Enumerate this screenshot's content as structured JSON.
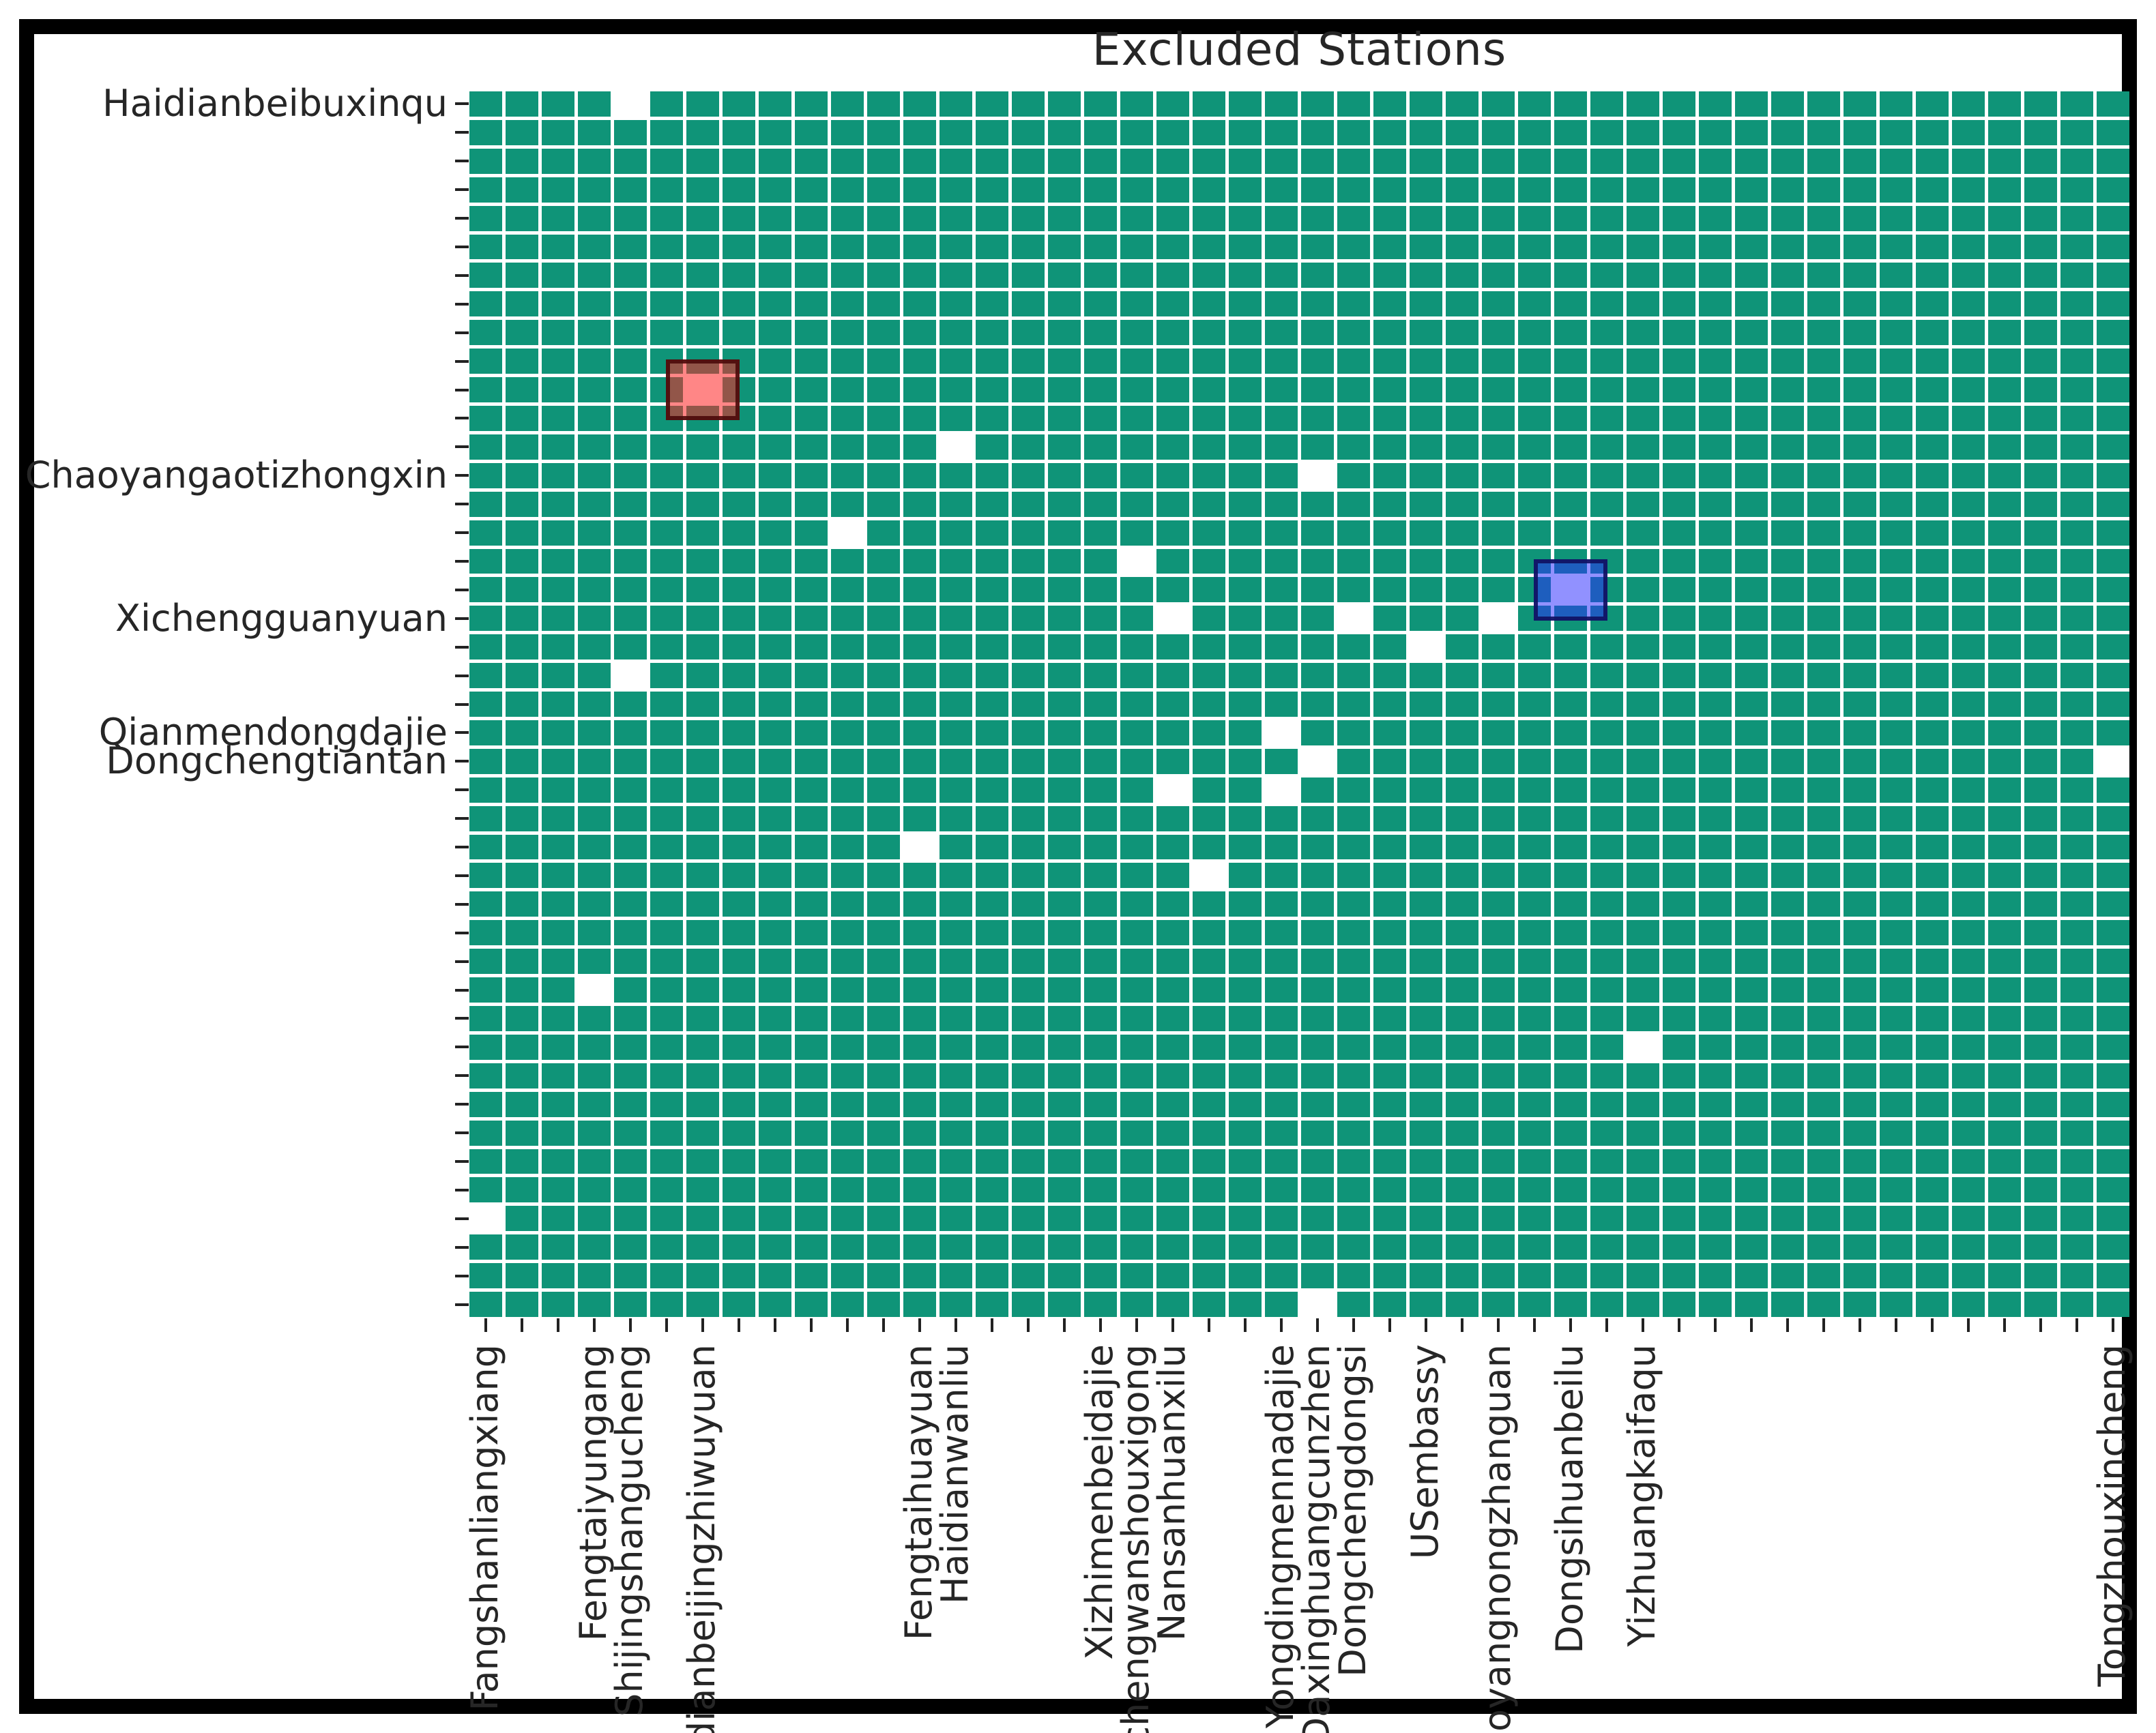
{
  "title": "Excluded Stations",
  "colors": {
    "included_cell": "#0F9478",
    "excluded_cell": "#FFFFFF",
    "grid_line": "#FFFFFF",
    "red_highlight_fill": "rgba(255,35,35,0.55)",
    "red_highlight_border": "rgba(75,10,10,0.9)",
    "blue_highlight_fill": "rgba(45,45,255,0.52)",
    "blue_highlight_border": "rgba(15,15,95,0.9)",
    "tick_mark": "#222222",
    "text": "#262626",
    "frame": "#000000"
  },
  "chart_data": {
    "type": "heatmap",
    "title": "Excluded Stations",
    "grid_rows": 43,
    "grid_cols": 46,
    "legend": "none",
    "grid_lines": "white gaps between cells",
    "value_meaning": {
      "included": "teal cell",
      "excluded": "white cell"
    },
    "y_tick_labels": [
      {
        "row": 0,
        "label": "Haidianbeibuxinqu"
      },
      {
        "row": 13,
        "label": "Chaoyangaotizhongxin"
      },
      {
        "row": 18,
        "label": "Xichengguanyuan"
      },
      {
        "row": 22,
        "label": "Qianmendongdajie"
      },
      {
        "row": 23,
        "label": "Dongchengtiantan"
      }
    ],
    "x_tick_labels": [
      {
        "col": 0,
        "label": "Fangshanliangxiang"
      },
      {
        "col": 3,
        "label": "Fengtaiyungang"
      },
      {
        "col": 4,
        "label": "Shijingshangucheng"
      },
      {
        "col": 6,
        "label": "Haidianbeijingzhiwuyuan"
      },
      {
        "col": 12,
        "label": "Fengtaihuayuan"
      },
      {
        "col": 13,
        "label": "Haidianwanliu"
      },
      {
        "col": 17,
        "label": "Xizhimenbeidajie"
      },
      {
        "col": 18,
        "label": "Xichengwanshouxigong"
      },
      {
        "col": 19,
        "label": "Nansanhuanxilu"
      },
      {
        "col": 22,
        "label": "Yongdingmennadajie"
      },
      {
        "col": 23,
        "label": "Daxinghuangcunzhen"
      },
      {
        "col": 24,
        "label": "Dongchengdongsi"
      },
      {
        "col": 26,
        "label": "USembassy"
      },
      {
        "col": 28,
        "label": "Chaoyangnongzhanguan"
      },
      {
        "col": 30,
        "label": "Dongsihuanbeilu"
      },
      {
        "col": 32,
        "label": "Yizhuangkaifaqu"
      },
      {
        "col": 45,
        "label": "Tongzhouxincheng"
      }
    ],
    "excluded_cells_row_col": [
      [
        0,
        4
      ],
      [
        10,
        6
      ],
      [
        12,
        13
      ],
      [
        13,
        23
      ],
      [
        15,
        10
      ],
      [
        16,
        18
      ],
      [
        17,
        30
      ],
      [
        18,
        19
      ],
      [
        18,
        24
      ],
      [
        18,
        28
      ],
      [
        19,
        26
      ],
      [
        20,
        4
      ],
      [
        22,
        22
      ],
      [
        23,
        23
      ],
      [
        23,
        45
      ],
      [
        24,
        19
      ],
      [
        24,
        22
      ],
      [
        26,
        12
      ],
      [
        27,
        20
      ],
      [
        31,
        3
      ],
      [
        33,
        32
      ],
      [
        39,
        0
      ],
      [
        42,
        23
      ]
    ],
    "highlighted_cells": [
      {
        "row": 10,
        "col": 6,
        "color": "red",
        "column_label": "Haidianbeijingzhiwuyuan"
      },
      {
        "row": 17,
        "col": 30,
        "color": "blue",
        "column_label": "Dongsihuanbeilu"
      }
    ]
  }
}
